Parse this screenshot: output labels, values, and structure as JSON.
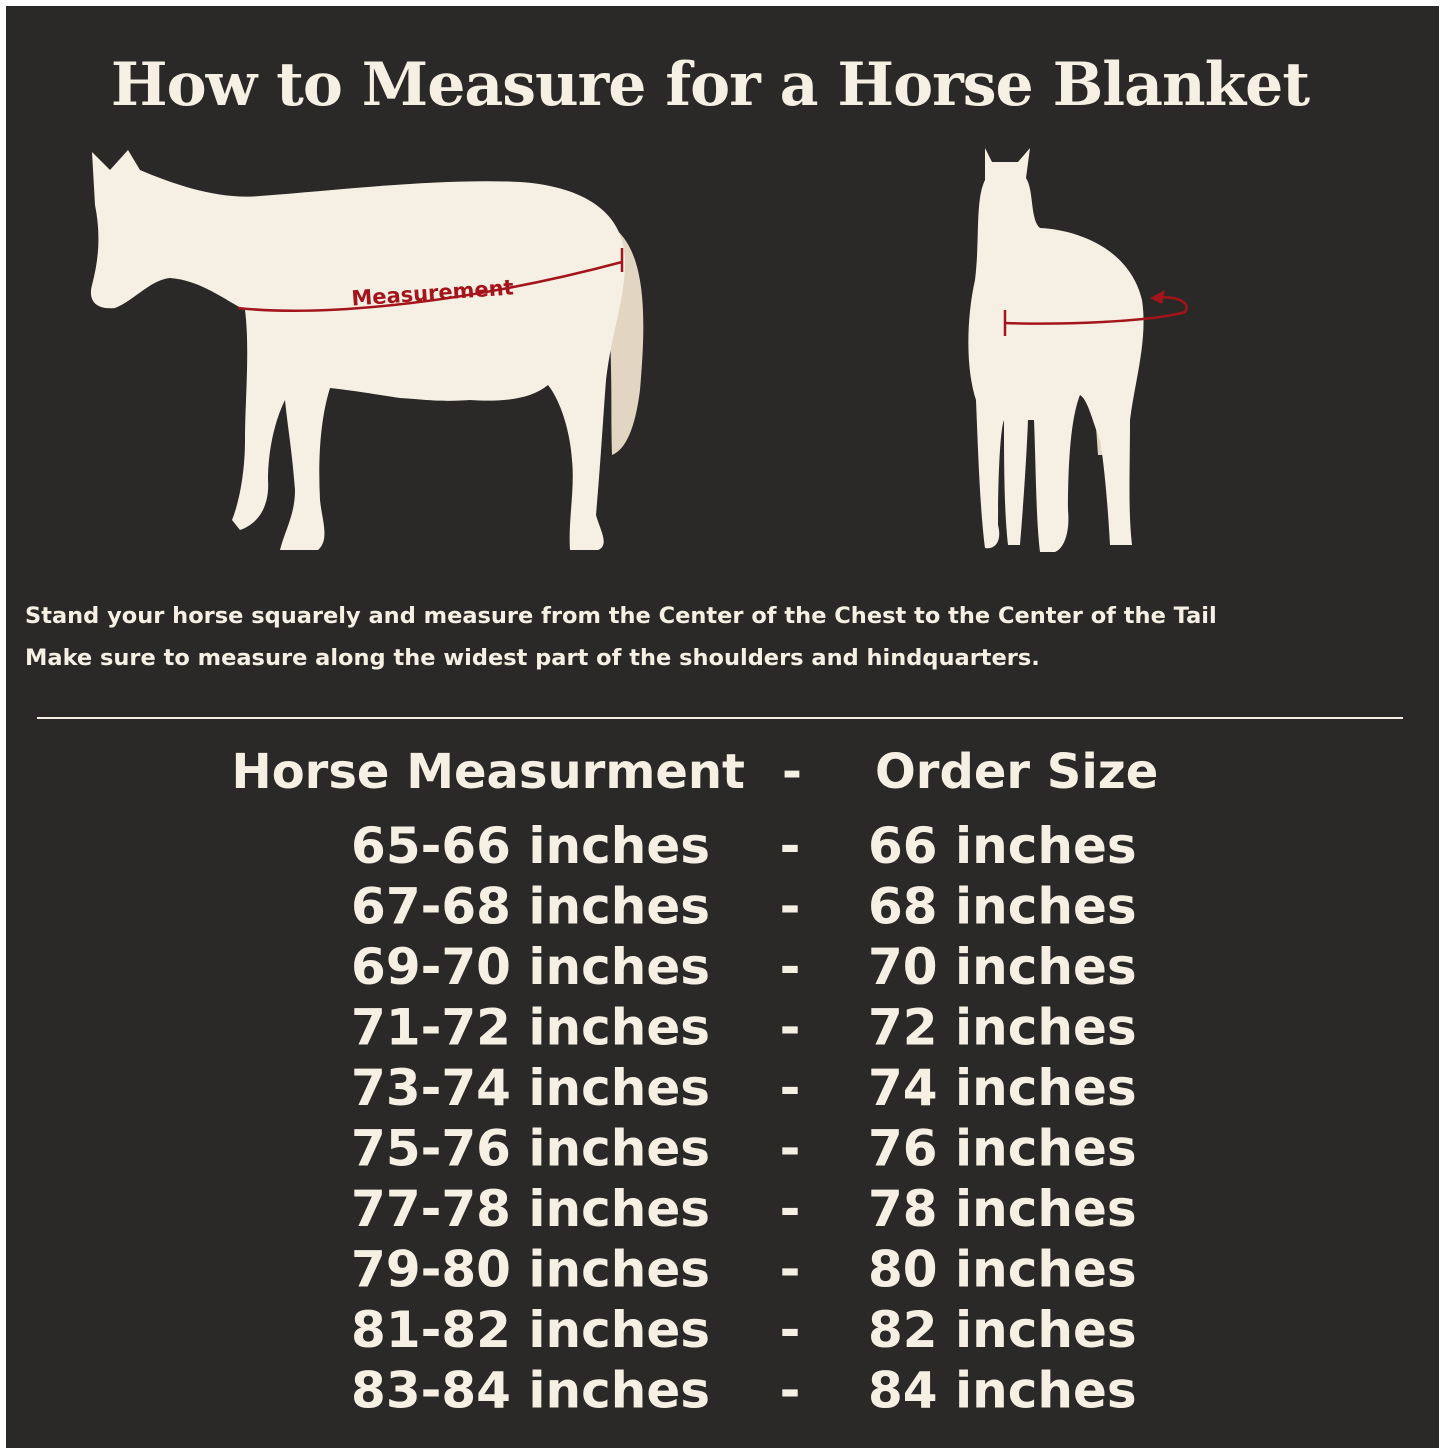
{
  "title": "How to Measure for a Horse Blanket",
  "illustration": {
    "label": "Measurement"
  },
  "instructions": [
    "Stand your horse squarely and measure from the Center of the Chest to the Center of the Tail",
    "Make sure to measure along the widest part of the shoulders and hindquarters."
  ],
  "table": {
    "header": [
      "Horse Measurment",
      "-",
      "Order Size"
    ],
    "rows": [
      [
        "65-66 inches",
        "-",
        "66 inches"
      ],
      [
        "67-68 inches",
        "-",
        "68 inches"
      ],
      [
        "69-70 inches",
        "-",
        "70 inches"
      ],
      [
        "71-72 inches",
        "-",
        "72 inches"
      ],
      [
        "73-74 inches",
        "-",
        "74 inches"
      ],
      [
        "75-76 inches",
        "-",
        "76 inches"
      ],
      [
        "77-78 inches",
        "-",
        "78 inches"
      ],
      [
        "79-80 inches",
        "-",
        "80 inches"
      ],
      [
        "81-82 inches",
        "-",
        "82 inches"
      ],
      [
        "83-84 inches",
        "-",
        "84 inches"
      ]
    ]
  }
}
